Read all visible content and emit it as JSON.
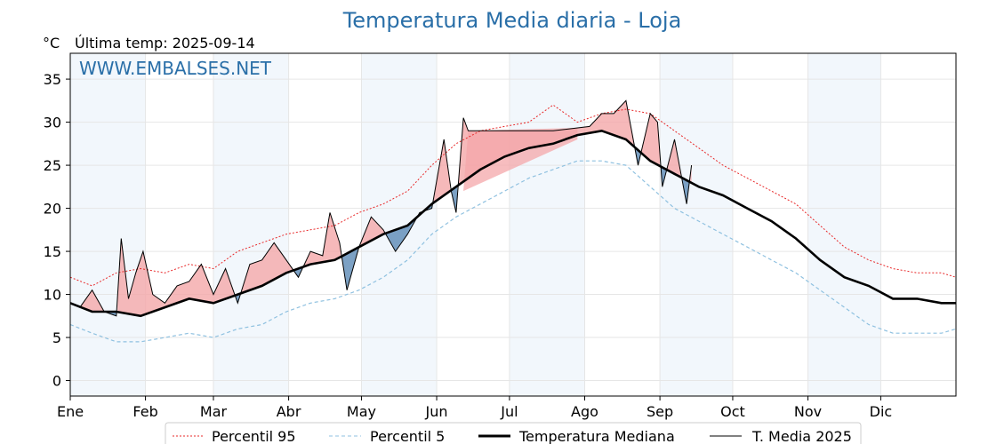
{
  "chart_data": {
    "type": "line",
    "title": "Temperatura Media diaria - Loja",
    "unit_label": "°C",
    "subtitle": "Última temp: 2025-09-14",
    "watermark": "WWW.EMBALSES.NET",
    "x_domain": [
      1,
      366
    ],
    "ylim": [
      -1.8,
      38
    ],
    "y_ticks": [
      0,
      5,
      10,
      15,
      20,
      25,
      30,
      35
    ],
    "grid": true,
    "legend_position": "bottom",
    "months": [
      {
        "label": "Ene",
        "day": 1
      },
      {
        "label": "Feb",
        "day": 32
      },
      {
        "label": "Mar",
        "day": 60
      },
      {
        "label": "Abr",
        "day": 91
      },
      {
        "label": "May",
        "day": 121
      },
      {
        "label": "Jun",
        "day": 152
      },
      {
        "label": "Jul",
        "day": 182
      },
      {
        "label": "Ago",
        "day": 213
      },
      {
        "label": "Sep",
        "day": 244
      },
      {
        "label": "Oct",
        "day": 274
      },
      {
        "label": "Nov",
        "day": 305
      },
      {
        "label": "Dic",
        "day": 335
      }
    ],
    "shaded_months": [
      [
        1,
        32
      ],
      [
        60,
        91
      ],
      [
        121,
        152
      ],
      [
        182,
        213
      ],
      [
        244,
        274
      ],
      [
        305,
        335
      ]
    ],
    "colors": {
      "p95": "#e8292a",
      "p5": "#8fc1e0",
      "median": "#000000",
      "media2025": "#000000",
      "above": "#f4a7a9",
      "below": "#5b8ab5",
      "title": "#2a6fa8",
      "band": "#f2f7fc"
    },
    "series": [
      {
        "key": "p95",
        "name": "Percentil 95",
        "x": [
          1,
          10,
          20,
          30,
          40,
          50,
          60,
          70,
          80,
          90,
          100,
          110,
          120,
          130,
          140,
          150,
          160,
          170,
          180,
          190,
          200,
          205,
          210,
          220,
          230,
          240,
          250,
          260,
          270,
          280,
          290,
          300,
          310,
          320,
          330,
          340,
          350,
          360,
          366
        ],
        "y": [
          12.0,
          11.0,
          12.5,
          13.0,
          12.5,
          13.5,
          13.0,
          15.0,
          16.0,
          17.0,
          17.5,
          18.0,
          19.5,
          20.5,
          22.0,
          25.0,
          27.5,
          29.0,
          29.5,
          30.0,
          32.0,
          31.0,
          30.0,
          31.0,
          31.5,
          31.0,
          29.0,
          27.0,
          25.0,
          23.5,
          22.0,
          20.5,
          18.0,
          15.5,
          14.0,
          13.0,
          12.5,
          12.5,
          12.0
        ]
      },
      {
        "key": "p5",
        "name": "Percentil 5",
        "x": [
          1,
          10,
          20,
          30,
          40,
          50,
          60,
          70,
          80,
          90,
          100,
          110,
          120,
          130,
          140,
          150,
          160,
          170,
          180,
          190,
          200,
          210,
          220,
          230,
          240,
          250,
          260,
          270,
          280,
          290,
          300,
          310,
          320,
          330,
          340,
          350,
          360,
          366
        ],
        "y": [
          6.5,
          5.5,
          4.5,
          4.5,
          5.0,
          5.5,
          5.0,
          6.0,
          6.5,
          8.0,
          9.0,
          9.5,
          10.5,
          12.0,
          14.0,
          17.0,
          19.0,
          20.5,
          22.0,
          23.5,
          24.5,
          25.5,
          25.5,
          25.0,
          22.5,
          20.0,
          18.5,
          17.0,
          15.5,
          14.0,
          12.5,
          10.5,
          8.5,
          6.5,
          5.5,
          5.5,
          5.5,
          6.0
        ]
      },
      {
        "key": "median",
        "name": "Temperatura Mediana",
        "x": [
          1,
          10,
          20,
          30,
          40,
          50,
          60,
          70,
          80,
          90,
          100,
          110,
          120,
          130,
          140,
          150,
          160,
          170,
          180,
          190,
          200,
          210,
          220,
          230,
          240,
          250,
          260,
          270,
          280,
          290,
          300,
          310,
          320,
          330,
          340,
          350,
          360,
          366
        ],
        "y": [
          9.0,
          8.0,
          8.0,
          7.5,
          8.5,
          9.5,
          9.0,
          10.0,
          11.0,
          12.5,
          13.5,
          14.0,
          15.5,
          17.0,
          18.0,
          20.5,
          22.5,
          24.5,
          26.0,
          27.0,
          27.5,
          28.5,
          29.0,
          28.0,
          25.5,
          24.0,
          22.5,
          21.5,
          20.0,
          18.5,
          16.5,
          14.0,
          12.0,
          11.0,
          9.5,
          9.5,
          9.0,
          9.0
        ]
      },
      {
        "key": "media2025",
        "name": "T. Media 2025",
        "x": [
          1,
          5,
          10,
          15,
          20,
          22,
          25,
          28,
          31,
          35,
          40,
          45,
          50,
          55,
          60,
          65,
          70,
          75,
          80,
          85,
          90,
          95,
          100,
          105,
          108,
          112,
          115,
          120,
          125,
          130,
          135,
          140,
          145,
          150,
          155,
          158,
          160,
          163,
          165,
          175,
          185,
          200,
          215,
          220,
          225,
          230,
          235,
          240,
          243,
          245,
          250,
          255,
          257
        ],
        "y": [
          9.0,
          8.5,
          10.5,
          8.0,
          7.5,
          16.5,
          9.5,
          12.5,
          15.0,
          10.0,
          9.0,
          11.0,
          11.5,
          13.5,
          10.0,
          13.0,
          9.0,
          13.5,
          14.0,
          16.0,
          14.0,
          12.0,
          15.0,
          14.5,
          19.5,
          16.0,
          10.5,
          15.5,
          19.0,
          17.5,
          15.0,
          17.0,
          19.5,
          20.0,
          28.0,
          22.0,
          19.5,
          30.5,
          29.0,
          29.0,
          29.0,
          29.0,
          29.5,
          31.0,
          31.0,
          32.5,
          25.0,
          31.0,
          30.0,
          22.5,
          28.0,
          20.5,
          25.0
        ]
      },
      {
        "key": "gap_lower",
        "name": "",
        "x": [
          163,
          210
        ],
        "y": [
          22.0,
          28.0
        ]
      }
    ]
  },
  "legend": [
    {
      "key": "p95",
      "label": "Percentil 95"
    },
    {
      "key": "p5",
      "label": "Percentil 5"
    },
    {
      "key": "median",
      "label": "Temperatura Mediana"
    },
    {
      "key": "media2025",
      "label": "T. Media 2025"
    }
  ]
}
